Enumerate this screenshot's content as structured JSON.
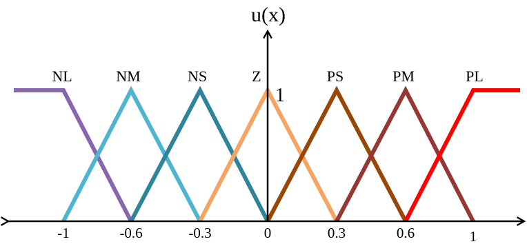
{
  "chart_data": {
    "type": "line",
    "title": "",
    "xlabel": "",
    "ylabel": "u(x)",
    "peak_label": "1",
    "xlim": [
      -1.3,
      1.3
    ],
    "ylim": [
      0,
      1
    ],
    "grid": false,
    "legend": "none",
    "x_ticks": [
      {
        "value": -1,
        "label": "-1"
      },
      {
        "value": -0.6,
        "label": "-0.6"
      },
      {
        "value": -0.3,
        "label": "-0.3"
      },
      {
        "value": 0,
        "label": "0"
      },
      {
        "value": 0.3,
        "label": "0.3"
      },
      {
        "value": 0.6,
        "label": "0.6"
      },
      {
        "value": 1,
        "label": "1"
      }
    ],
    "series": [
      {
        "name": "NL",
        "color": "#8667ad",
        "x": [
          -1.3,
          -1.0,
          -0.6
        ],
        "y": [
          1,
          1,
          0
        ]
      },
      {
        "name": "NM",
        "color": "#4fb4cf",
        "x": [
          -1.0,
          -0.6,
          -0.3
        ],
        "y": [
          0,
          1,
          0
        ]
      },
      {
        "name": "NS",
        "color": "#2e8499",
        "x": [
          -0.6,
          -0.3,
          0.0
        ],
        "y": [
          0,
          1,
          0
        ]
      },
      {
        "name": "Z",
        "color": "#f5a461",
        "x": [
          -0.3,
          0.0,
          0.3
        ],
        "y": [
          0,
          1,
          0
        ]
      },
      {
        "name": "PS",
        "color": "#984806",
        "x": [
          0.0,
          0.3,
          0.6
        ],
        "y": [
          0,
          1,
          0
        ]
      },
      {
        "name": "PM",
        "color": "#953735",
        "x": [
          0.3,
          0.6,
          1.0
        ],
        "y": [
          0,
          1,
          0
        ]
      },
      {
        "name": "PL",
        "color": "#ff0000",
        "x": [
          0.6,
          1.0,
          1.3
        ],
        "y": [
          0,
          1,
          1
        ]
      }
    ]
  }
}
